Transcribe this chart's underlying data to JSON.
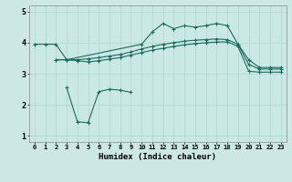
{
  "xlabel": "Humidex (Indice chaleur)",
  "background_color": "#cce8e4",
  "line_color": "#1a6b5e",
  "grid_color": "#aad8d0",
  "xlim": [
    -0.5,
    23.5
  ],
  "ylim": [
    0.8,
    5.2
  ],
  "yticks": [
    1,
    2,
    3,
    4,
    5
  ],
  "xticks": [
    0,
    1,
    2,
    3,
    4,
    5,
    6,
    7,
    8,
    9,
    10,
    11,
    12,
    13,
    14,
    15,
    16,
    17,
    18,
    19,
    20,
    21,
    22,
    23
  ],
  "line1_x": [
    0,
    1,
    2,
    3,
    10,
    11,
    12,
    13,
    14,
    15,
    16,
    17,
    18,
    19,
    20,
    21,
    22,
    23
  ],
  "line1_y": [
    3.95,
    3.95,
    3.95,
    3.45,
    3.95,
    4.35,
    4.62,
    4.45,
    4.55,
    4.5,
    4.55,
    4.62,
    4.55,
    3.95,
    3.45,
    3.2,
    3.2,
    3.2
  ],
  "line2_x": [
    2,
    3,
    4,
    5,
    6,
    7,
    8,
    9,
    10,
    11,
    12,
    13,
    14,
    15,
    16,
    17,
    18,
    19,
    20,
    21,
    22,
    23
  ],
  "line2_y": [
    3.45,
    3.45,
    3.45,
    3.48,
    3.52,
    3.57,
    3.62,
    3.7,
    3.8,
    3.88,
    3.95,
    4.0,
    4.05,
    4.08,
    4.1,
    4.12,
    4.1,
    3.95,
    3.3,
    3.15,
    3.15,
    3.15
  ],
  "line3_x": [
    2,
    3,
    4,
    5,
    6,
    7,
    8,
    9,
    10,
    11,
    12,
    13,
    14,
    15,
    16,
    17,
    18,
    19,
    20,
    21,
    22,
    23
  ],
  "line3_y": [
    3.45,
    3.45,
    3.42,
    3.38,
    3.42,
    3.47,
    3.52,
    3.6,
    3.68,
    3.76,
    3.82,
    3.88,
    3.93,
    3.97,
    4.0,
    4.02,
    4.03,
    3.88,
    3.08,
    3.05,
    3.05,
    3.05
  ],
  "line4_x": [
    3,
    4,
    5,
    6,
    7,
    8,
    9
  ],
  "line4_y": [
    2.55,
    1.45,
    1.42,
    2.42,
    2.5,
    2.47,
    2.4
  ]
}
